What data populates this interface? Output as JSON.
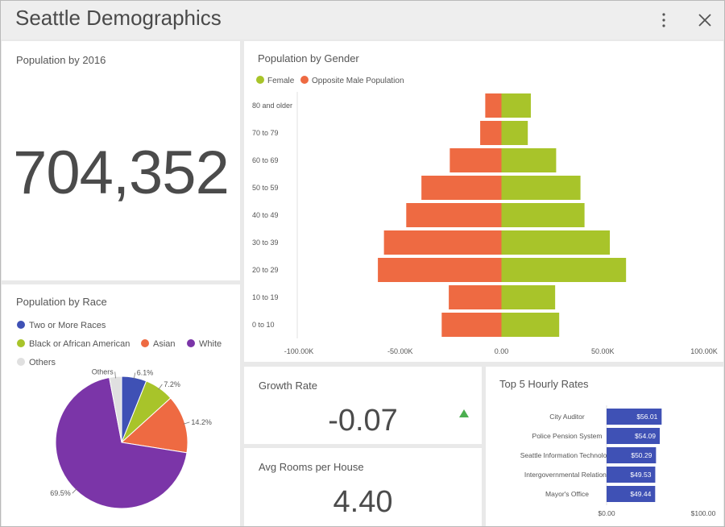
{
  "header": {
    "title": "Seattle Demographics"
  },
  "population": {
    "title": "Population by 2016",
    "value": "704,352"
  },
  "race": {
    "title": "Population by Race",
    "legend": [
      {
        "label": "Two or More Races",
        "color": "#3f51b5"
      },
      {
        "label": "Black or African American",
        "color": "#a8c42a"
      },
      {
        "label": "Asian",
        "color": "#ee6a42"
      },
      {
        "label": "White",
        "color": "#7b35a8"
      },
      {
        "label": "Others",
        "color": "#e0e0e0"
      }
    ]
  },
  "gender": {
    "title": "Population by Gender",
    "legend": [
      {
        "label": "Female",
        "color": "#a8c42a"
      },
      {
        "label": "Opposite Male Population",
        "color": "#ee6a42"
      }
    ]
  },
  "growth": {
    "title": "Growth Rate",
    "value": "-0.07",
    "trend_color": "#4caf50"
  },
  "rooms": {
    "title": "Avg Rooms per House",
    "value": "4.40"
  },
  "rates": {
    "title": "Top 5 Hourly Rates",
    "bar_color": "#3f51b5"
  },
  "chart_data": [
    {
      "id": "race",
      "type": "pie",
      "title": "Population by Race",
      "slices": [
        {
          "label": "Two or More Races",
          "value": 6.1,
          "display": "6.1%",
          "color": "#3f51b5"
        },
        {
          "label": "Black or African American",
          "value": 7.2,
          "display": "7.2%",
          "color": "#a8c42a"
        },
        {
          "label": "Asian",
          "value": 14.2,
          "display": "14.2%",
          "color": "#ee6a42"
        },
        {
          "label": "White",
          "value": 69.5,
          "display": "69.5%",
          "color": "#7b35a8"
        },
        {
          "label": "Others",
          "value": 3.0,
          "display": "Others",
          "color": "#e0e0e0"
        }
      ]
    },
    {
      "id": "gender",
      "type": "bar",
      "title": "Population by Gender",
      "orientation": "horizontal",
      "categories": [
        "80 and older",
        "70 to 79",
        "60 to 69",
        "50 to 59",
        "40 to 49",
        "30 to 39",
        "20 to 29",
        "10 to 19",
        "0 to 10"
      ],
      "series": [
        {
          "name": "Female",
          "color": "#a8c42a",
          "values": [
            14500,
            13000,
            27000,
            39000,
            41000,
            53500,
            61500,
            26500,
            28500
          ]
        },
        {
          "name": "Opposite Male Population",
          "color": "#ee6a42",
          "values": [
            -8000,
            -10500,
            -25500,
            -39500,
            -47000,
            -58000,
            -61000,
            -26000,
            -29500
          ]
        }
      ],
      "xlim": [
        -100000,
        100000
      ],
      "xticks": [
        -100000,
        -50000,
        0,
        50000,
        100000
      ],
      "xtick_labels": [
        "-100.00K",
        "-50.00K",
        "0.00",
        "50.00K",
        "100.00K"
      ]
    },
    {
      "id": "rates",
      "type": "bar",
      "title": "Top 5 Hourly Rates",
      "orientation": "horizontal",
      "categories": [
        "City Auditor",
        "Police Pension System",
        "Seattle Information Technology",
        "Intergovernmental Relations",
        "Mayor's Office"
      ],
      "values": [
        56.01,
        54.09,
        50.29,
        49.53,
        49.44
      ],
      "value_labels": [
        "$56.01",
        "$54.09",
        "$50.29",
        "$49.53",
        "$49.44"
      ],
      "xlim": [
        0,
        100
      ],
      "xtick_labels": [
        "$0.00",
        "$100.00"
      ]
    }
  ]
}
